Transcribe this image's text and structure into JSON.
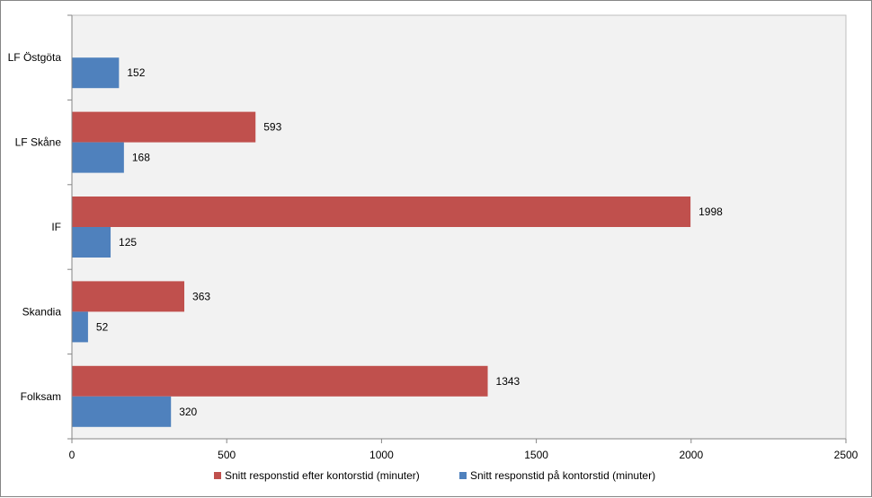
{
  "chart_data": {
    "type": "bar",
    "orientation": "horizontal",
    "categories": [
      "LF Östgöta",
      "LF Skåne",
      "IF",
      "Skandia",
      "Folksam"
    ],
    "series": [
      {
        "name": "Snitt responstid efter kontorstid (minuter)",
        "color": "#C0504D",
        "values": [
          null,
          593,
          1998,
          363,
          1343
        ],
        "labels": [
          "",
          "593",
          "1998",
          "363",
          "1343"
        ]
      },
      {
        "name": "Snitt responstid på kontorstid (minuter)",
        "color": "#4F81BD",
        "values": [
          152,
          168,
          125,
          52,
          320
        ],
        "labels": [
          "152",
          "168",
          "125",
          "52",
          "320"
        ]
      }
    ],
    "xlim": [
      0,
      2500
    ],
    "xticks": [
      0,
      500,
      1000,
      1500,
      2000,
      2500
    ],
    "xtick_labels": [
      "0",
      "500",
      "1000",
      "1500",
      "2000",
      "2500"
    ],
    "title": "",
    "xlabel": "",
    "ylabel": "",
    "grid": false,
    "plot_background": "#F2F2F2",
    "legend_position": "bottom"
  }
}
